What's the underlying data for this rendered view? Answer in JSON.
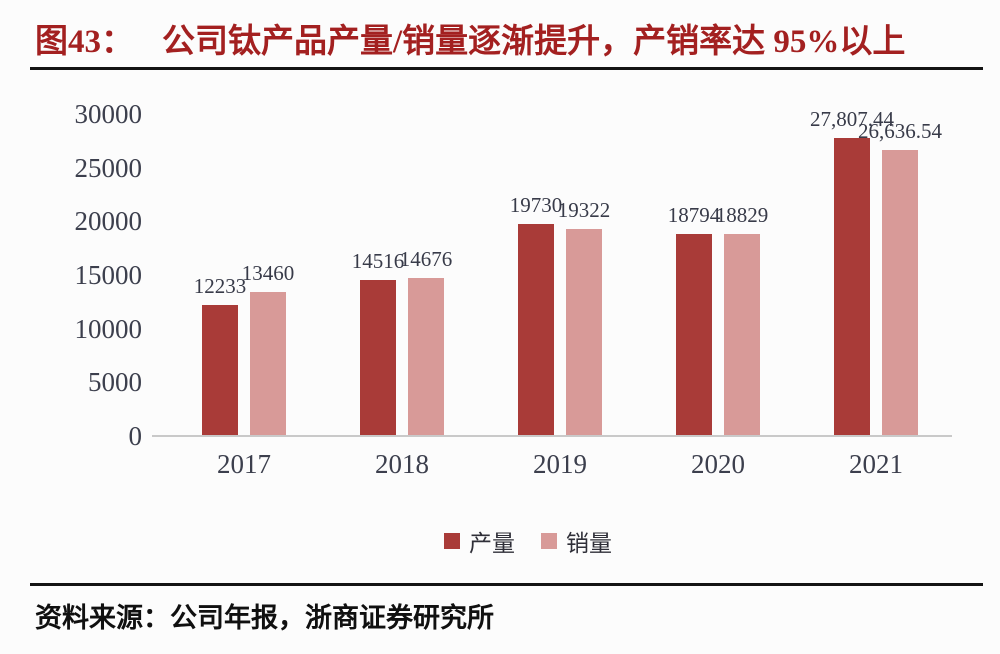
{
  "figure": {
    "label": "图43：",
    "title": "公司钛产品产量/销量逐渐提升，产销率达 95%以上"
  },
  "source": {
    "prefix": "资料来源：",
    "text": "公司年报，浙商证券研究所"
  },
  "colors": {
    "title_red": "#A32020",
    "production_bar": "#A93B38",
    "sales_bar": "#D89A98",
    "axis_label": "#3C3F4D",
    "axis_line": "#C9C9C9",
    "divider": "#141414",
    "background": "#FCFCFC"
  },
  "chart_data": {
    "type": "bar",
    "title": "公司钛产品产量/销量逐渐提升，产销率达 95%以上",
    "categories": [
      "2017",
      "2018",
      "2019",
      "2020",
      "2021"
    ],
    "series": [
      {
        "name": "产量",
        "color": "#A93B38",
        "values": [
          12233,
          14516,
          19730,
          18794,
          27807.44
        ],
        "labels": [
          "12233",
          "14516",
          "19730",
          "18794",
          "27,807.44"
        ]
      },
      {
        "name": "销量",
        "color": "#D89A98",
        "values": [
          13460,
          14676,
          19322,
          18829,
          26636.54
        ],
        "labels": [
          "13460",
          "14676",
          "19322",
          "18829",
          "26,636.54"
        ]
      }
    ],
    "xlabel": "",
    "ylabel": "",
    "ylim": [
      0,
      30000
    ],
    "ytick_step": 5000,
    "yticks": [
      "30000",
      "25000",
      "20000",
      "15000",
      "10000",
      "5000",
      "0"
    ],
    "grid": false,
    "legend_position": "bottom"
  }
}
